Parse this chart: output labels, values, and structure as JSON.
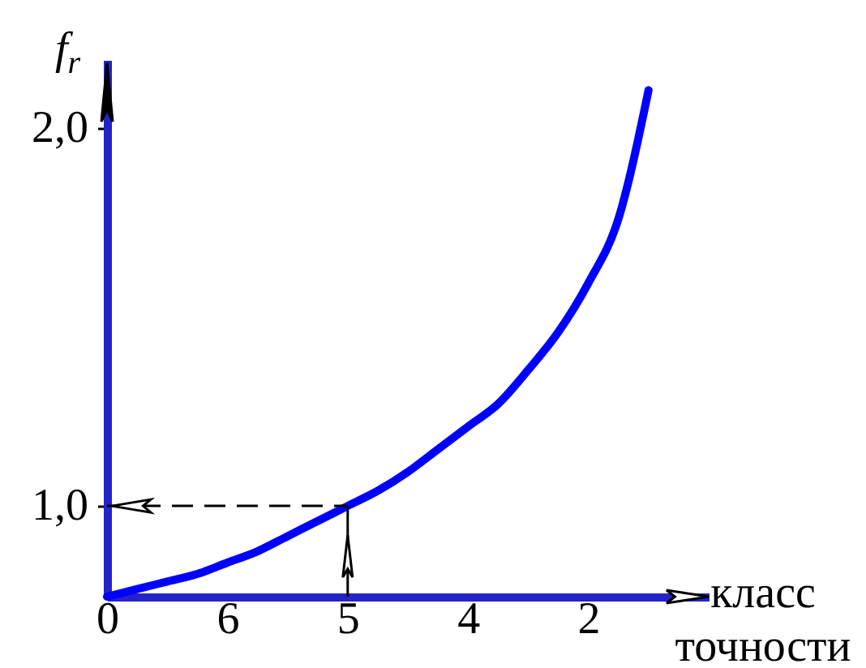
{
  "chart_data": {
    "type": "line",
    "xlabel": "класс точности",
    "ylabel": "f$_{r}$",
    "categories": [
      "0",
      null,
      null,
      null,
      "6",
      null,
      null,
      null,
      "5",
      null,
      null,
      null,
      "4",
      null,
      null,
      null,
      "2",
      null,
      null,
      null,
      null
    ],
    "series": [
      {
        "color": "#0000ff",
        "values": [
          0.76,
          0.78,
          0.8,
          0.82,
          0.85,
          0.88,
          0.92,
          0.96,
          1.0,
          1.04,
          1.09,
          1.15,
          1.21,
          1.27,
          1.36,
          1.46,
          1.59,
          1.76,
          2.1,
          null,
          null
        ]
      }
    ],
    "ylim": [
      0.76,
      2.18
    ],
    "yticks": [
      {
        "value": 1,
        "label": "1,0"
      },
      {
        "value": 2,
        "label": "2,0"
      }
    ],
    "ref_lines": [
      {
        "axis": "y",
        "value": 1,
        "line_style": "dashed",
        "color": "#000000"
      },
      {
        "axis": "x",
        "value": "5",
        "color": "#000000"
      }
    ],
    "line_style": "solid"
  }
}
